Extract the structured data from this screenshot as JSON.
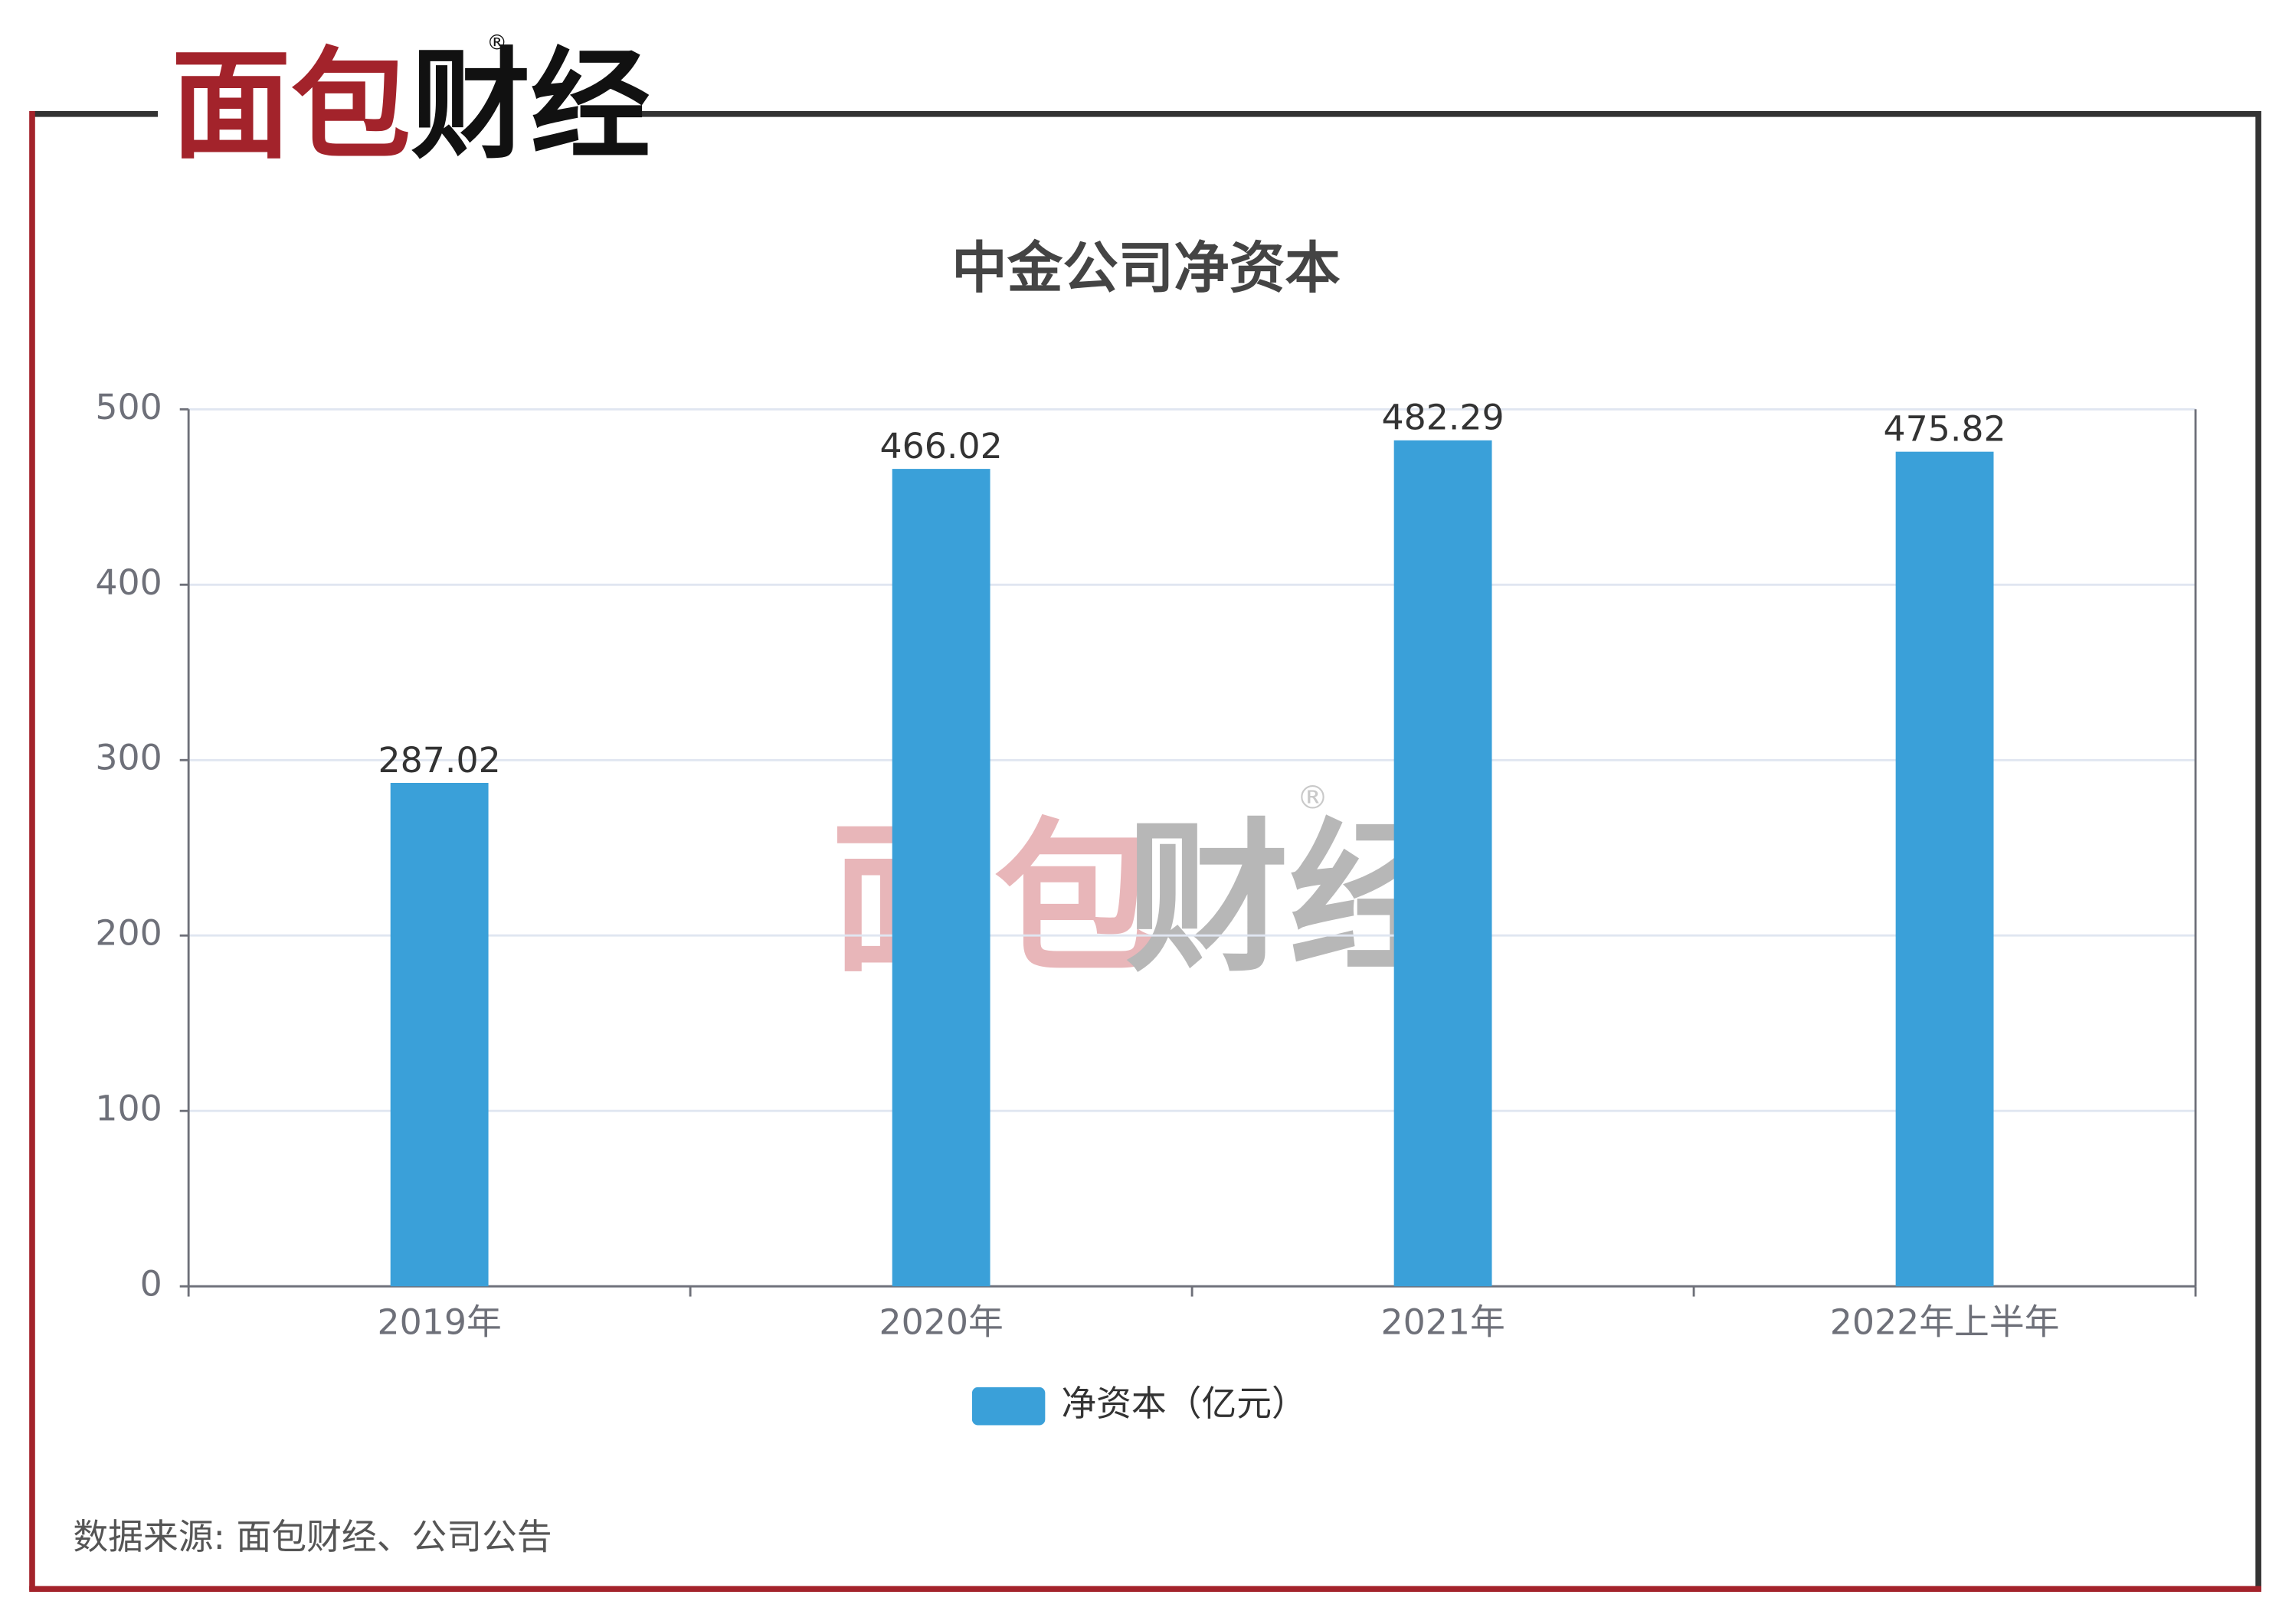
{
  "logo": {
    "red": "面包",
    "black": "财经",
    "mark": "®"
  },
  "chart_data": {
    "type": "bar",
    "title": "中金公司净资本",
    "categories": [
      "2019年",
      "2020年",
      "2021年",
      "2022年上半年"
    ],
    "series": [
      {
        "name": "净资本（亿元）",
        "color": "#3aa0d9",
        "values": [
          287.02,
          466.02,
          482.29,
          475.82
        ]
      }
    ],
    "ylim": [
      0,
      500
    ],
    "yticks": [
      0,
      100,
      200,
      300,
      400,
      500
    ],
    "grid": true,
    "legend": "bottom"
  },
  "source": "数据来源: 面包财经、公司公告"
}
